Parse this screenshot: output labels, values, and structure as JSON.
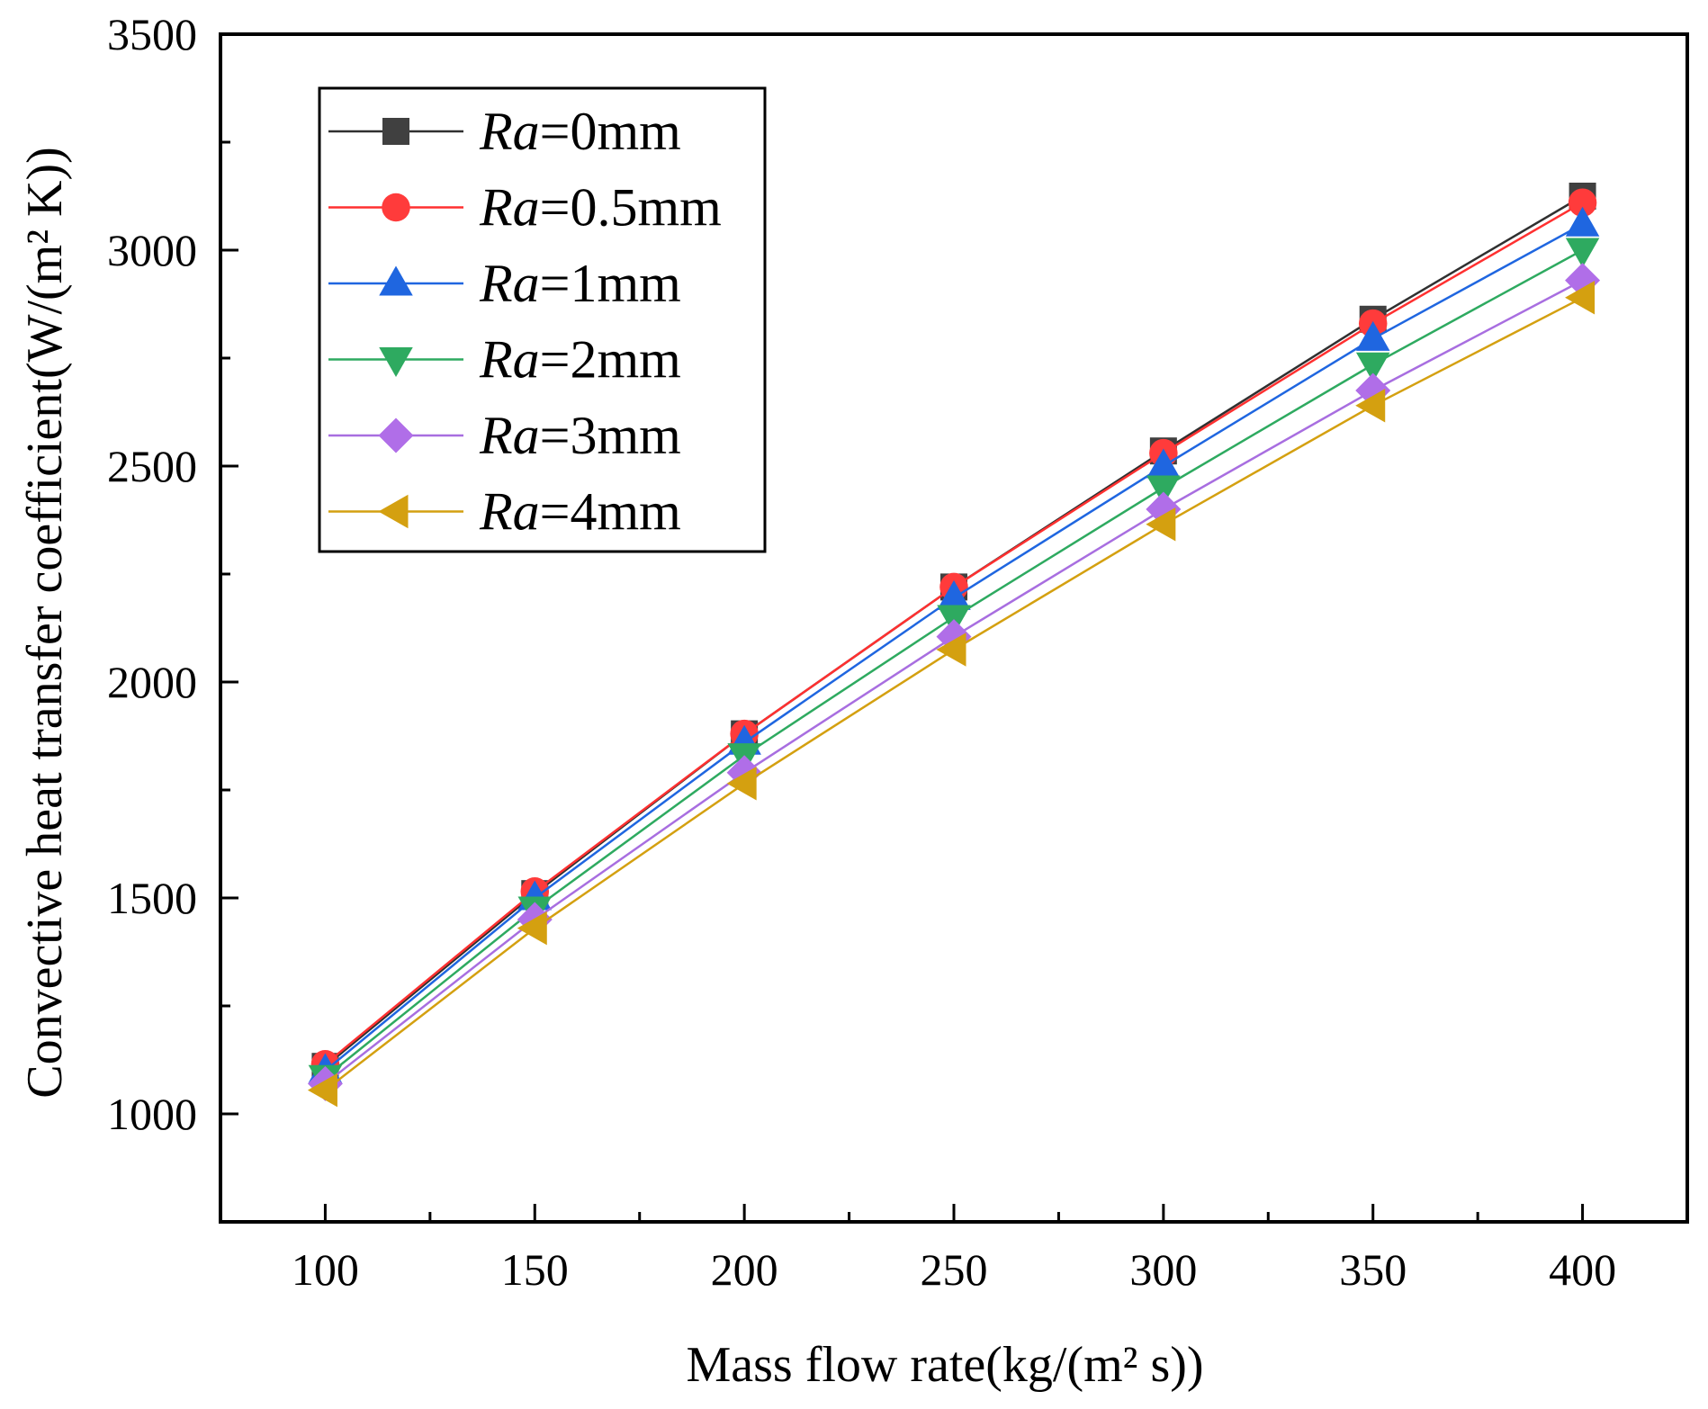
{
  "chart_data": {
    "type": "line",
    "xlabel": "Mass flow rate(kg/(m² s))",
    "ylabel": "Convective heat transfer coefficient(W/(m² K))",
    "xlim": [
      75,
      425
    ],
    "ylim": [
      750,
      3500
    ],
    "x_ticks": [
      100,
      150,
      200,
      250,
      300,
      350,
      400
    ],
    "y_ticks": [
      1000,
      1500,
      2000,
      2500,
      3000,
      3500
    ],
    "grid": false,
    "legend_position": "top-left",
    "x": [
      100,
      150,
      200,
      250,
      300,
      350,
      400
    ],
    "series": [
      {
        "name": "Ra=0mm",
        "var": "Ra",
        "suffix": "=0mm",
        "marker": "square",
        "line_color": "#303030",
        "marker_color": "#404040",
        "values": [
          1110,
          1510,
          1880,
          2220,
          2535,
          2840,
          3125
        ]
      },
      {
        "name": "Ra=0.5mm",
        "var": "Ra",
        "suffix": "=0.5mm",
        "marker": "circle",
        "line_color": "#ff3030",
        "marker_color": "#ff3b3b",
        "values": [
          1115,
          1515,
          1880,
          2220,
          2530,
          2830,
          3110
        ]
      },
      {
        "name": "Ra=1mm",
        "var": "Ra",
        "suffix": "=1mm",
        "marker": "triangle-up",
        "line_color": "#1f66e0",
        "marker_color": "#1f66e0",
        "values": [
          1100,
          1500,
          1860,
          2195,
          2500,
          2795,
          3060
        ]
      },
      {
        "name": "Ra=2mm",
        "var": "Ra",
        "suffix": "=2mm",
        "marker": "triangle-down",
        "line_color": "#2eaa60",
        "marker_color": "#2eaa60",
        "values": [
          1085,
          1475,
          1830,
          2150,
          2450,
          2735,
          3000
        ]
      },
      {
        "name": "Ra=3mm",
        "var": "Ra",
        "suffix": "=3mm",
        "marker": "diamond",
        "line_color": "#a86ee0",
        "marker_color": "#b06ee8",
        "values": [
          1070,
          1450,
          1790,
          2105,
          2400,
          2675,
          2930
        ]
      },
      {
        "name": "Ra=4mm",
        "var": "Ra",
        "suffix": "=4mm",
        "marker": "triangle-left",
        "line_color": "#d4a010",
        "marker_color": "#d4a010",
        "values": [
          1055,
          1430,
          1765,
          2075,
          2365,
          2640,
          2890
        ]
      }
    ]
  }
}
